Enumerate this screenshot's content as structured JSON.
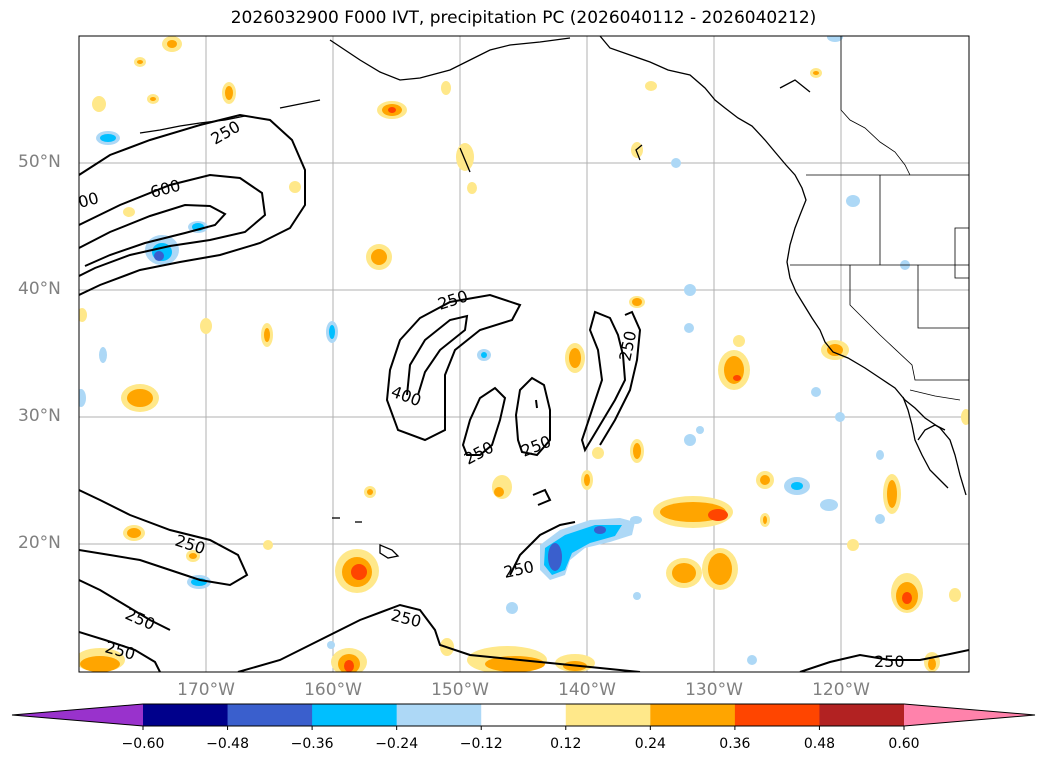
{
  "title": "2026032900 F000 IVT, precipitation PC (2026040112 - 2026040212)",
  "map": {
    "region": "North Pacific and western North America",
    "lat_labels": [
      "50°N",
      "40°N",
      "30°N",
      "20°N"
    ],
    "lon_labels": [
      "170°W",
      "160°W",
      "150°W",
      "140°W",
      "130°W",
      "120°W"
    ],
    "gridlines": true,
    "ivt_contour_labels": [
      "250",
      "600",
      "00",
      "250",
      "400",
      "250",
      "250",
      "250",
      "250",
      "250",
      "250",
      "250",
      "250",
      "250"
    ]
  },
  "colorbar": {
    "ticks": [
      "−0.60",
      "−0.48",
      "−0.36",
      "−0.24",
      "−0.12",
      "0.12",
      "0.24",
      "0.36",
      "0.48",
      "0.60"
    ],
    "colors": [
      "#9932cc",
      "#00008b",
      "#3a5fcd",
      "#00bfff",
      "#add8f6",
      "#ffffff",
      "#ffe88a",
      "#ffa500",
      "#ff4500",
      "#b22222",
      "#ff82ab"
    ]
  }
}
